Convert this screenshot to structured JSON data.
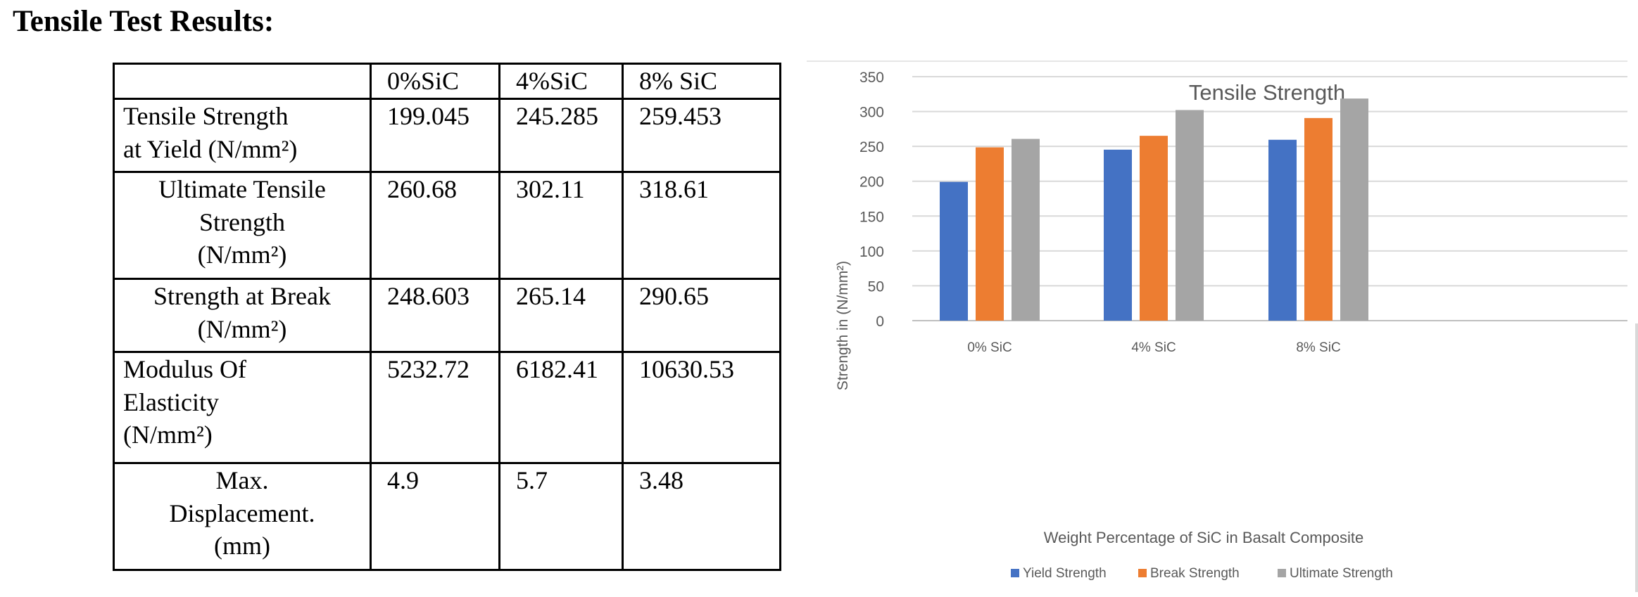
{
  "heading": "Tensile Test Results:",
  "table": {
    "columns": [
      "",
      "0%SiC",
      "4%SiC",
      "8% SiC"
    ],
    "rows": [
      {
        "label": [
          "Tensile Strength",
          "at Yield (N/mm²)"
        ],
        "align": "left",
        "values": [
          "199.045",
          "245.285",
          "259.453"
        ]
      },
      {
        "label": [
          "Ultimate Tensile",
          "Strength",
          "(N/mm²)"
        ],
        "align": "center",
        "values": [
          "260.68",
          "302.11",
          "318.61"
        ]
      },
      {
        "label": [
          "Strength at Break",
          "(N/mm²)"
        ],
        "align": "center",
        "values": [
          "248.603",
          "265.14",
          "290.65"
        ]
      },
      {
        "label": [
          "Modulus Of",
          "Elasticity",
          "(N/mm²)"
        ],
        "align": "left",
        "values": [
          "5232.72",
          "6182.41",
          "10630.53"
        ]
      },
      {
        "label": [
          "Max.",
          "Displacement.",
          "(mm)"
        ],
        "align": "center",
        "values": [
          "4.9",
          "5.7",
          "3.48"
        ]
      }
    ]
  },
  "chart_data": {
    "type": "bar",
    "title": "Tensile Strength",
    "xlabel": "Weight Percentage of SiC in Basalt Composite",
    "ylabel": "Strength in (N/mm²)",
    "categories": [
      "0% SiC",
      "4% SiC",
      "8% SiC"
    ],
    "ylim": [
      0,
      350
    ],
    "yticks": [
      0,
      50,
      100,
      150,
      200,
      250,
      300,
      350
    ],
    "grid": true,
    "legend": "bottom",
    "series": [
      {
        "name": "Yield Strength",
        "color": "#4472C4",
        "values": [
          199.045,
          245.285,
          259.453
        ]
      },
      {
        "name": "Break Strength",
        "color": "#ED7D31",
        "values": [
          248.603,
          265.14,
          290.65
        ]
      },
      {
        "name": "Ultimate Strength",
        "color": "#A5A5A5",
        "values": [
          260.68,
          302.11,
          318.61
        ]
      }
    ]
  }
}
